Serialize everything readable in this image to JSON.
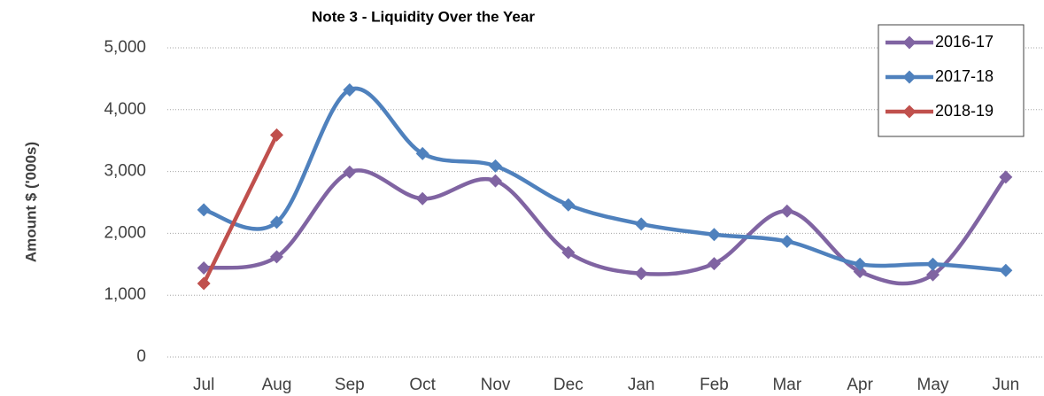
{
  "chart_data": {
    "type": "line",
    "title": "Note 3 - Liquidity Over the Year",
    "y_label": "Amount $ ('000s)",
    "categories": [
      "Jul",
      "Aug",
      "Sep",
      "Oct",
      "Nov",
      "Dec",
      "Jan",
      "Feb",
      "Mar",
      "Apr",
      "May",
      "Jun"
    ],
    "series": [
      {
        "name": "2016-17",
        "color": "#8064a2",
        "values": [
          1440,
          1620,
          2990,
          2560,
          2850,
          1690,
          1350,
          1510,
          2360,
          1380,
          1330,
          2910
        ]
      },
      {
        "name": "2017-18",
        "color": "#4f81bd",
        "values": [
          2380,
          2180,
          4320,
          3290,
          3090,
          2460,
          2150,
          1980,
          1870,
          1500,
          1500,
          1400
        ]
      },
      {
        "name": "2018-19",
        "color": "#c0504d",
        "values": [
          1190,
          3590,
          null,
          null,
          null,
          null,
          null,
          null,
          null,
          null,
          null,
          null
        ]
      }
    ],
    "ylim": [
      0,
      5000
    ],
    "yticks": [
      0,
      {
        "value": 1000,
        "label": "1,000"
      },
      {
        "value": 2000,
        "label": "2,000"
      },
      {
        "value": 3000,
        "label": "3,000"
      },
      {
        "value": 4000,
        "label": "4,000"
      },
      {
        "value": 5000,
        "label": "5,000"
      }
    ],
    "grid": true,
    "smooth": true,
    "legend": "top-right"
  }
}
